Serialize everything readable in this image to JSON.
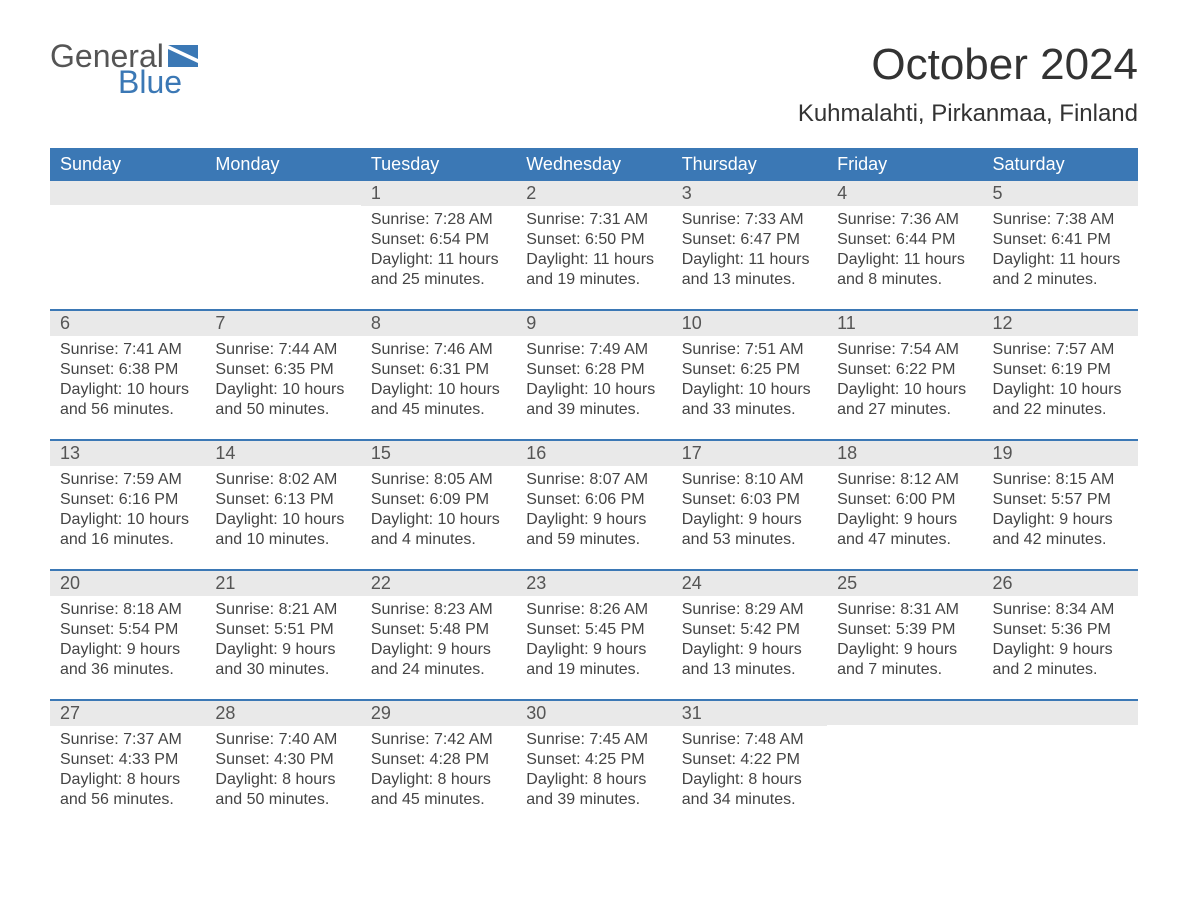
{
  "logo": {
    "top": "General",
    "bottom": "Blue",
    "flag_color": "#3b78b5"
  },
  "title": "October 2024",
  "location": "Kuhmalahti, Pirkanmaa, Finland",
  "colors": {
    "header_bg": "#3b78b5",
    "header_text": "#ffffff",
    "daynum_bg": "#e9e9e9",
    "text": "#444444",
    "rule": "#3b78b5"
  },
  "fonts": {
    "title_size": 44,
    "location_size": 24,
    "dayheader_size": 18,
    "body_size": 16
  },
  "dayHeaders": [
    "Sunday",
    "Monday",
    "Tuesday",
    "Wednesday",
    "Thursday",
    "Friday",
    "Saturday"
  ],
  "weeks": [
    [
      {
        "n": "",
        "sunrise": "",
        "sunset": "",
        "daylight": ""
      },
      {
        "n": "",
        "sunrise": "",
        "sunset": "",
        "daylight": ""
      },
      {
        "n": "1",
        "sunrise": "Sunrise: 7:28 AM",
        "sunset": "Sunset: 6:54 PM",
        "daylight": "Daylight: 11 hours and 25 minutes."
      },
      {
        "n": "2",
        "sunrise": "Sunrise: 7:31 AM",
        "sunset": "Sunset: 6:50 PM",
        "daylight": "Daylight: 11 hours and 19 minutes."
      },
      {
        "n": "3",
        "sunrise": "Sunrise: 7:33 AM",
        "sunset": "Sunset: 6:47 PM",
        "daylight": "Daylight: 11 hours and 13 minutes."
      },
      {
        "n": "4",
        "sunrise": "Sunrise: 7:36 AM",
        "sunset": "Sunset: 6:44 PM",
        "daylight": "Daylight: 11 hours and 8 minutes."
      },
      {
        "n": "5",
        "sunrise": "Sunrise: 7:38 AM",
        "sunset": "Sunset: 6:41 PM",
        "daylight": "Daylight: 11 hours and 2 minutes."
      }
    ],
    [
      {
        "n": "6",
        "sunrise": "Sunrise: 7:41 AM",
        "sunset": "Sunset: 6:38 PM",
        "daylight": "Daylight: 10 hours and 56 minutes."
      },
      {
        "n": "7",
        "sunrise": "Sunrise: 7:44 AM",
        "sunset": "Sunset: 6:35 PM",
        "daylight": "Daylight: 10 hours and 50 minutes."
      },
      {
        "n": "8",
        "sunrise": "Sunrise: 7:46 AM",
        "sunset": "Sunset: 6:31 PM",
        "daylight": "Daylight: 10 hours and 45 minutes."
      },
      {
        "n": "9",
        "sunrise": "Sunrise: 7:49 AM",
        "sunset": "Sunset: 6:28 PM",
        "daylight": "Daylight: 10 hours and 39 minutes."
      },
      {
        "n": "10",
        "sunrise": "Sunrise: 7:51 AM",
        "sunset": "Sunset: 6:25 PM",
        "daylight": "Daylight: 10 hours and 33 minutes."
      },
      {
        "n": "11",
        "sunrise": "Sunrise: 7:54 AM",
        "sunset": "Sunset: 6:22 PM",
        "daylight": "Daylight: 10 hours and 27 minutes."
      },
      {
        "n": "12",
        "sunrise": "Sunrise: 7:57 AM",
        "sunset": "Sunset: 6:19 PM",
        "daylight": "Daylight: 10 hours and 22 minutes."
      }
    ],
    [
      {
        "n": "13",
        "sunrise": "Sunrise: 7:59 AM",
        "sunset": "Sunset: 6:16 PM",
        "daylight": "Daylight: 10 hours and 16 minutes."
      },
      {
        "n": "14",
        "sunrise": "Sunrise: 8:02 AM",
        "sunset": "Sunset: 6:13 PM",
        "daylight": "Daylight: 10 hours and 10 minutes."
      },
      {
        "n": "15",
        "sunrise": "Sunrise: 8:05 AM",
        "sunset": "Sunset: 6:09 PM",
        "daylight": "Daylight: 10 hours and 4 minutes."
      },
      {
        "n": "16",
        "sunrise": "Sunrise: 8:07 AM",
        "sunset": "Sunset: 6:06 PM",
        "daylight": "Daylight: 9 hours and 59 minutes."
      },
      {
        "n": "17",
        "sunrise": "Sunrise: 8:10 AM",
        "sunset": "Sunset: 6:03 PM",
        "daylight": "Daylight: 9 hours and 53 minutes."
      },
      {
        "n": "18",
        "sunrise": "Sunrise: 8:12 AM",
        "sunset": "Sunset: 6:00 PM",
        "daylight": "Daylight: 9 hours and 47 minutes."
      },
      {
        "n": "19",
        "sunrise": "Sunrise: 8:15 AM",
        "sunset": "Sunset: 5:57 PM",
        "daylight": "Daylight: 9 hours and 42 minutes."
      }
    ],
    [
      {
        "n": "20",
        "sunrise": "Sunrise: 8:18 AM",
        "sunset": "Sunset: 5:54 PM",
        "daylight": "Daylight: 9 hours and 36 minutes."
      },
      {
        "n": "21",
        "sunrise": "Sunrise: 8:21 AM",
        "sunset": "Sunset: 5:51 PM",
        "daylight": "Daylight: 9 hours and 30 minutes."
      },
      {
        "n": "22",
        "sunrise": "Sunrise: 8:23 AM",
        "sunset": "Sunset: 5:48 PM",
        "daylight": "Daylight: 9 hours and 24 minutes."
      },
      {
        "n": "23",
        "sunrise": "Sunrise: 8:26 AM",
        "sunset": "Sunset: 5:45 PM",
        "daylight": "Daylight: 9 hours and 19 minutes."
      },
      {
        "n": "24",
        "sunrise": "Sunrise: 8:29 AM",
        "sunset": "Sunset: 5:42 PM",
        "daylight": "Daylight: 9 hours and 13 minutes."
      },
      {
        "n": "25",
        "sunrise": "Sunrise: 8:31 AM",
        "sunset": "Sunset: 5:39 PM",
        "daylight": "Daylight: 9 hours and 7 minutes."
      },
      {
        "n": "26",
        "sunrise": "Sunrise: 8:34 AM",
        "sunset": "Sunset: 5:36 PM",
        "daylight": "Daylight: 9 hours and 2 minutes."
      }
    ],
    [
      {
        "n": "27",
        "sunrise": "Sunrise: 7:37 AM",
        "sunset": "Sunset: 4:33 PM",
        "daylight": "Daylight: 8 hours and 56 minutes."
      },
      {
        "n": "28",
        "sunrise": "Sunrise: 7:40 AM",
        "sunset": "Sunset: 4:30 PM",
        "daylight": "Daylight: 8 hours and 50 minutes."
      },
      {
        "n": "29",
        "sunrise": "Sunrise: 7:42 AM",
        "sunset": "Sunset: 4:28 PM",
        "daylight": "Daylight: 8 hours and 45 minutes."
      },
      {
        "n": "30",
        "sunrise": "Sunrise: 7:45 AM",
        "sunset": "Sunset: 4:25 PM",
        "daylight": "Daylight: 8 hours and 39 minutes."
      },
      {
        "n": "31",
        "sunrise": "Sunrise: 7:48 AM",
        "sunset": "Sunset: 4:22 PM",
        "daylight": "Daylight: 8 hours and 34 minutes."
      },
      {
        "n": "",
        "sunrise": "",
        "sunset": "",
        "daylight": ""
      },
      {
        "n": "",
        "sunrise": "",
        "sunset": "",
        "daylight": ""
      }
    ]
  ]
}
